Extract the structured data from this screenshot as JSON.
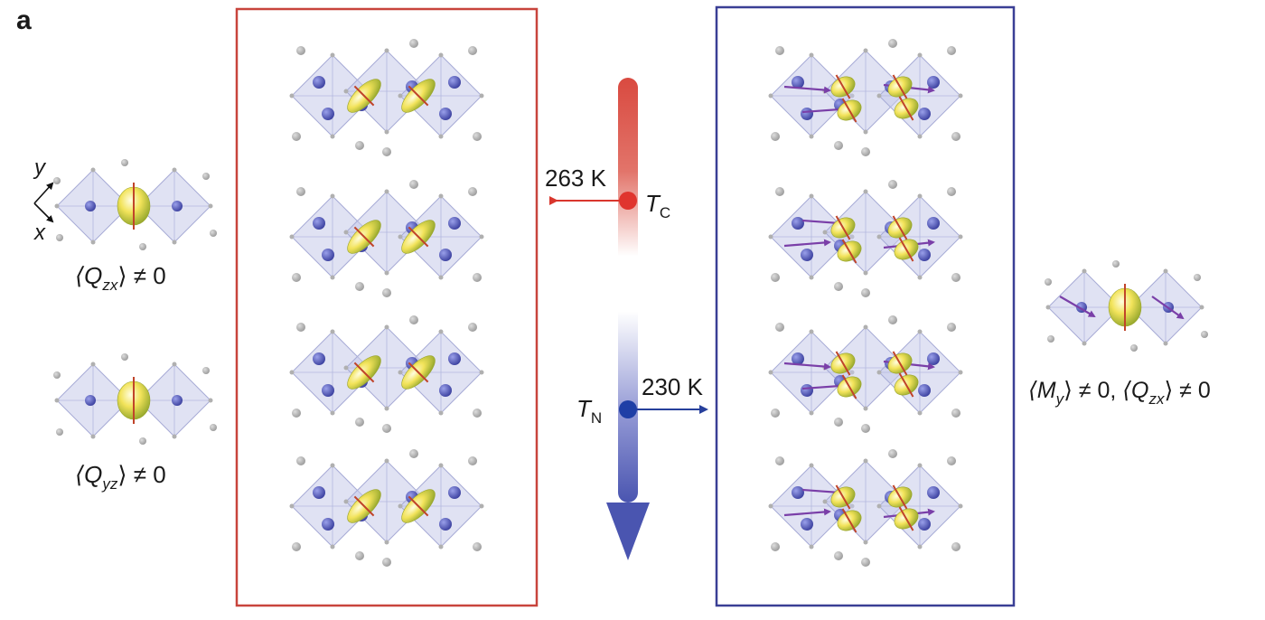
{
  "panel_label": "a",
  "axes": {
    "y": "y",
    "x": "x"
  },
  "labels": {
    "qzx": {
      "pre": "⟨Q",
      "sub": "zx",
      "post": "⟩ ≠ 0"
    },
    "qyz": {
      "pre": "⟨Q",
      "sub": "yz",
      "post": "⟩ ≠ 0"
    },
    "my_qzx": {
      "a_pre": "⟨M",
      "a_sub": "y",
      "a_post": "⟩ ≠ 0, ",
      "b_pre": "⟨Q",
      "b_sub": "zx",
      "b_post": "⟩ ≠ 0"
    }
  },
  "temperatures": {
    "tc_value": "263 K",
    "tc_symbol": "T",
    "tc_sub": "C",
    "tn_value": "230 K",
    "tn_symbol": "T",
    "tn_sub": "N"
  },
  "colors": {
    "red_frame": "#c8443c",
    "blue_frame": "#3a3f95",
    "tc_dot": "#e0352e",
    "tn_dot": "#1f3fa6",
    "octahedron": "#c7cae9",
    "atom": "#5a5fc2",
    "gray_atom": "#b5b5b5",
    "orbital": "#e6d04a",
    "spin_arrow": "#7a3fa8",
    "bar_top": "#d94a40",
    "bar_bottom": "#4a55b0"
  }
}
